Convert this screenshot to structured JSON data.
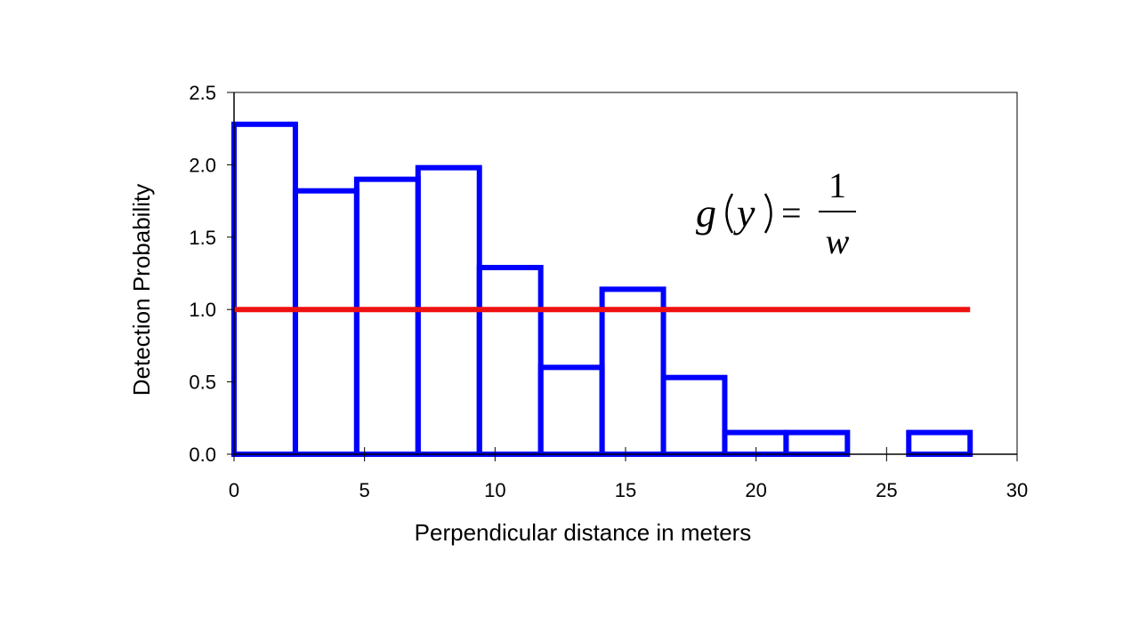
{
  "chart_data": {
    "type": "bar",
    "xlabel": "Perpendicular distance in meters",
    "ylabel": "Detection Probability",
    "xlim": [
      0,
      30
    ],
    "ylim": [
      0,
      2.5
    ],
    "xticks": [
      "0",
      "5",
      "10",
      "15",
      "20",
      "25",
      "30"
    ],
    "yticks": [
      "0.0",
      "0.5",
      "1.0",
      "1.5",
      "2.0",
      "2.5"
    ],
    "grid": false,
    "series": [
      {
        "kind": "histogram",
        "bin_edges": [
          0,
          2.35,
          4.7,
          7.05,
          9.4,
          11.75,
          14.1,
          16.45,
          18.8,
          21.15,
          23.5,
          25.85,
          28.2
        ],
        "values": [
          2.28,
          1.82,
          1.9,
          1.98,
          1.29,
          0.6,
          1.14,
          0.53,
          0.15,
          0.15,
          0.0,
          0.15
        ]
      },
      {
        "kind": "line",
        "x": [
          0,
          28.2
        ],
        "y": [
          1.0,
          1.0
        ]
      }
    ],
    "annotations": {
      "equation": {
        "lhs_func": "g",
        "lhs_arg": "y",
        "equals": "=",
        "numerator": "1",
        "denominator": "w"
      }
    },
    "colors": {
      "histogram": "#0000ff",
      "line": "#ee1111",
      "axis": "#000000"
    }
  }
}
